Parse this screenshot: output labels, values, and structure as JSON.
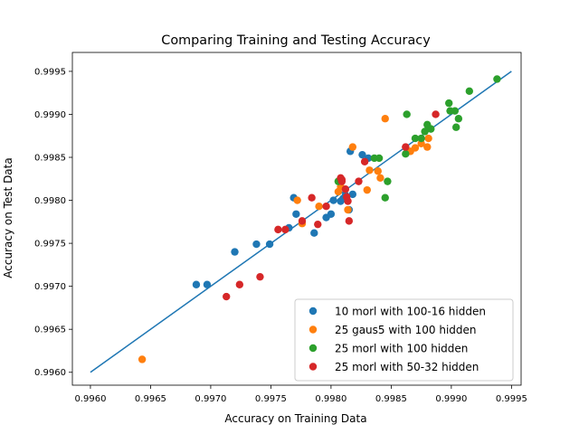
{
  "chart_data": {
    "type": "scatter",
    "title": "Comparing Training and Testing Accuracy",
    "xlabel": "Accuracy on Training Data",
    "ylabel": "Accuracy on Test Data",
    "xlim": [
      0.99585,
      0.99958
    ],
    "ylim": [
      0.99585,
      0.99972
    ],
    "xticks": [
      0.996,
      0.9965,
      0.997,
      0.9975,
      0.998,
      0.9985,
      0.999,
      0.9995
    ],
    "yticks": [
      0.996,
      0.9965,
      0.997,
      0.9975,
      0.998,
      0.9985,
      0.999,
      0.9995
    ],
    "xtick_labels": [
      "0.9960",
      "0.9965",
      "0.9970",
      "0.9975",
      "0.9980",
      "0.9985",
      "0.9990",
      "0.9995"
    ],
    "ytick_labels": [
      "0.9960",
      "0.9965",
      "0.9970",
      "0.9975",
      "0.9980",
      "0.9985",
      "0.9990",
      "0.9995"
    ],
    "legend_position": "bottom-right",
    "reference_line": {
      "x": [
        0.996,
        0.9995
      ],
      "y": [
        0.996,
        0.9995
      ],
      "color": "#1f77b4"
    },
    "series": [
      {
        "name": "10 morl with 100-16 hidden",
        "color": "#1f77b4",
        "x": [
          0.99688,
          0.99697,
          0.9972,
          0.99738,
          0.99749,
          0.99765,
          0.99769,
          0.99771,
          0.99786,
          0.99796,
          0.998,
          0.99802,
          0.99808,
          0.9981,
          0.99812,
          0.99815,
          0.99816,
          0.99818,
          0.99826,
          0.99831
        ],
        "y": [
          0.99702,
          0.99702,
          0.9974,
          0.99749,
          0.99749,
          0.99768,
          0.99803,
          0.99784,
          0.99762,
          0.9978,
          0.99784,
          0.998,
          0.99799,
          0.99802,
          0.99806,
          0.99789,
          0.99857,
          0.99807,
          0.99853,
          0.99849
        ]
      },
      {
        "name": "25 gaus5 with 100 hidden",
        "color": "#ff7f0e",
        "x": [
          0.99643,
          0.99772,
          0.99776,
          0.9979,
          0.99806,
          0.99808,
          0.99814,
          0.99818,
          0.9983,
          0.99832,
          0.99839,
          0.99841,
          0.99845,
          0.99866,
          0.9987,
          0.99875,
          0.9988,
          0.99881
        ],
        "y": [
          0.99615,
          0.998,
          0.99773,
          0.99793,
          0.9981,
          0.99816,
          0.99789,
          0.99862,
          0.99812,
          0.99835,
          0.99834,
          0.99826,
          0.99895,
          0.99857,
          0.99861,
          0.99866,
          0.99862,
          0.99872
        ]
      },
      {
        "name": "25 morl with 100 hidden",
        "color": "#2ca02c",
        "x": [
          0.99806,
          0.99836,
          0.9984,
          0.99845,
          0.99847,
          0.99862,
          0.99863,
          0.9987,
          0.99875,
          0.99878,
          0.9988,
          0.99881,
          0.99883,
          0.99898,
          0.99899,
          0.99903,
          0.99904,
          0.99906,
          0.99915,
          0.99938
        ],
        "y": [
          0.99822,
          0.99849,
          0.99849,
          0.99803,
          0.99822,
          0.99854,
          0.999,
          0.99872,
          0.99872,
          0.9988,
          0.99888,
          0.99884,
          0.99883,
          0.99913,
          0.99904,
          0.99904,
          0.99885,
          0.99895,
          0.99927,
          0.99941
        ]
      },
      {
        "name": "25 morl with 50-32 hidden",
        "color": "#d62728",
        "x": [
          0.99713,
          0.99724,
          0.99741,
          0.99756,
          0.99762,
          0.99776,
          0.99784,
          0.99789,
          0.99796,
          0.99808,
          0.99809,
          0.99809,
          0.99812,
          0.99813,
          0.99814,
          0.99815,
          0.99823,
          0.99828,
          0.99862,
          0.99887
        ],
        "y": [
          0.99688,
          0.99702,
          0.99711,
          0.99766,
          0.99766,
          0.99776,
          0.99803,
          0.99772,
          0.99793,
          0.99826,
          0.99822,
          0.99824,
          0.99813,
          0.99804,
          0.99799,
          0.99776,
          0.99822,
          0.99845,
          0.99862,
          0.999
        ]
      }
    ]
  }
}
